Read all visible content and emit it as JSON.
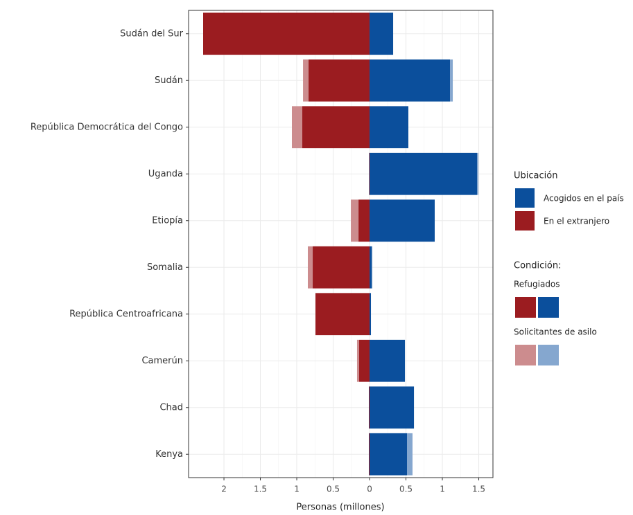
{
  "chart_data": {
    "type": "diverging-bar",
    "xlabel": "Personas (millones)",
    "categories": [
      "Sudán del Sur",
      "Sudán",
      "República Democrática del Congo",
      "Uganda",
      "Etiopía",
      "Somalia",
      "República Centroafricana",
      "Camerún",
      "Chad",
      "Kenya"
    ],
    "series": [
      {
        "color": "#9b1c20",
        "values": [
          -2.286,
          -0.838,
          -0.924,
          -0.007,
          -0.152,
          -0.781,
          -0.743,
          -0.143,
          -0.01,
          -0.01
        ]
      },
      {
        "color": "#cc8c8e",
        "values": [
          0,
          -0.076,
          -0.143,
          0,
          -0.105,
          -0.067,
          0,
          -0.029,
          0,
          0
        ]
      },
      {
        "color": "#0b4f9c",
        "values": [
          0.324,
          1.105,
          0.533,
          1.476,
          0.895,
          0.029,
          0.019,
          0.486,
          0.61,
          0.514
        ]
      },
      {
        "color": "#85a7cf",
        "values": [
          0,
          0.038,
          0,
          0.019,
          0,
          0.01,
          0,
          0,
          0,
          0.076
        ]
      }
    ],
    "xlim": [
      -2.486,
      1.695
    ],
    "xticks": [
      {
        "value": -2,
        "label": "2"
      },
      {
        "value": -1.5,
        "label": "1.5"
      },
      {
        "value": -1,
        "label": "1"
      },
      {
        "value": -0.5,
        "label": "0.5"
      },
      0,
      0.5,
      1,
      1.5
    ],
    "grid": true,
    "legend": {
      "location_title": "Ubicación",
      "location_items": [
        {
          "label": "Acogidos en el país",
          "color": "#0b4f9c"
        },
        {
          "label": "En el extranjero",
          "color": "#9b1c20"
        }
      ],
      "condition_title": "Condición:",
      "condition_items": [
        {
          "label": "Refugiados",
          "colors": [
            "#9b1c20",
            "#0b4f9c"
          ]
        },
        {
          "label": "Solicitantes de asilo",
          "colors": [
            "#cc8c8e",
            "#85a7cf"
          ]
        }
      ]
    }
  }
}
